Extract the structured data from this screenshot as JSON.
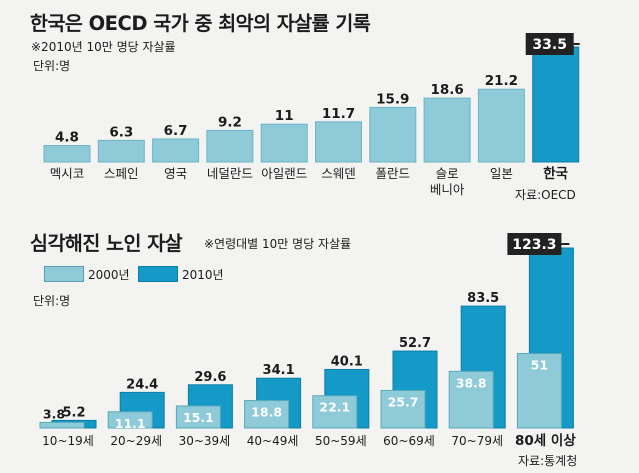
{
  "header": {
    "title": "한국은 OECD 국가 중 최악의 자살률 기록",
    "subtitle": "※2010년 10만 명당 자살률",
    "unit": "단위:명",
    "source": "자료:OECD"
  },
  "section2": {
    "title": "심각해진 노인 자살",
    "note": "※연령대별 10만 명당 자살률",
    "unit": "단위:명",
    "source": "자료:통계청"
  },
  "colors": {
    "light_bar": "#8ecad8",
    "dark_bar": "#1599c6",
    "highlight_label_bg": "#222222"
  },
  "chart_data": [
    {
      "type": "bar",
      "title": "한국은 OECD 국가 중 최악의 자살률 기록",
      "subtitle": "※2010년 10만 명당 자살률",
      "ylabel": "단위:명",
      "categories": [
        "멕시코",
        "스페인",
        "영국",
        "네덜란드",
        "아일랜드",
        "스웨덴",
        "폴란드",
        "슬로베니아",
        "일본",
        "한국"
      ],
      "category_lines": [
        [
          "멕시코"
        ],
        [
          "스페인"
        ],
        [
          "영국"
        ],
        [
          "네덜란드"
        ],
        [
          "아일랜드"
        ],
        [
          "스웨덴"
        ],
        [
          "폴란드"
        ],
        [
          "슬로",
          "베니아"
        ],
        [
          "일본"
        ],
        [
          "한국"
        ]
      ],
      "values": [
        4.8,
        6.3,
        6.7,
        9.2,
        11,
        11.7,
        15.9,
        18.6,
        21.2,
        33.5
      ],
      "value_labels": [
        "4.8",
        "6.3",
        "6.7",
        "9.2",
        "11",
        "11.7",
        "15.9",
        "18.6",
        "21.2",
        "33.5"
      ],
      "highlight": "한국",
      "source": "자료:OECD"
    },
    {
      "type": "bar",
      "title": "심각해진 노인 자살",
      "subtitle": "※연령대별 10만 명당 자살률",
      "ylabel": "단위:명",
      "categories": [
        "10~19세",
        "20~29세",
        "30~39세",
        "40~49세",
        "50~59세",
        "60~69세",
        "70~79세",
        "80세 이상"
      ],
      "series": [
        {
          "name": "2000년",
          "values": [
            3.8,
            11.1,
            15.1,
            18.8,
            22.1,
            25.7,
            38.8,
            51
          ]
        },
        {
          "name": "2010년",
          "values": [
            5.2,
            24.4,
            29.6,
            34.1,
            40.1,
            52.7,
            83.5,
            123.3
          ]
        }
      ],
      "value_labels_2000": [
        "3.8",
        "11.1",
        "15.1",
        "18.8",
        "22.1",
        "25.7",
        "38.8",
        "51"
      ],
      "value_labels_2010": [
        "5.2",
        "24.4",
        "29.6",
        "34.1",
        "40.1",
        "52.7",
        "83.5",
        "123.3"
      ],
      "highlight": "80세 이상",
      "source": "자료:통계청"
    }
  ]
}
